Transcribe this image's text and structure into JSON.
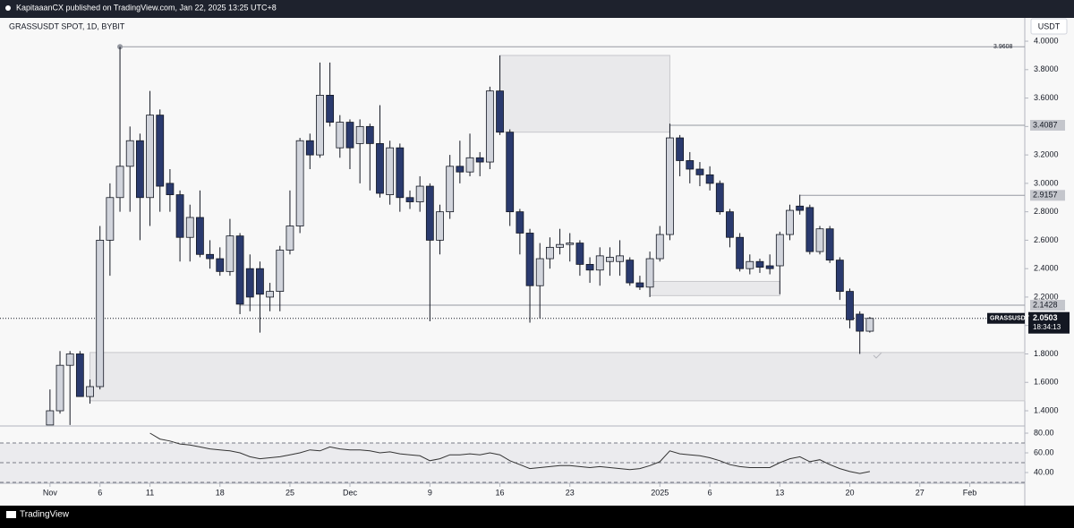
{
  "header": {
    "publisher": "KapitaaanCX published on TradingView.com, Jan 22, 2025 13:25 UTC+8",
    "brand": "TradingView"
  },
  "chart_data": {
    "type": "candlestick",
    "title": "GRASSUSDT SPOT, 1D, BYBIT",
    "currency": "USDT",
    "xlim": [
      -5,
      97.5
    ],
    "xticks": [
      {
        "value": 0,
        "label": "Nov"
      },
      {
        "value": 5,
        "label": "6"
      },
      {
        "value": 10,
        "label": "11"
      },
      {
        "value": 17,
        "label": "18"
      },
      {
        "value": 24,
        "label": "25"
      },
      {
        "value": 30,
        "label": "Dec"
      },
      {
        "value": 38,
        "label": "9"
      },
      {
        "value": 45,
        "label": "16"
      },
      {
        "value": 52,
        "label": "23"
      },
      {
        "value": 61,
        "label": "2025"
      },
      {
        "value": 66,
        "label": "6"
      },
      {
        "value": 73,
        "label": "13"
      },
      {
        "value": 80,
        "label": "20"
      },
      {
        "value": 87,
        "label": "27"
      },
      {
        "value": 92,
        "label": "Feb"
      }
    ],
    "ylim": [
      1.293,
      4.164
    ],
    "yticks": [
      {
        "value": 1.4,
        "label": "1.4000"
      },
      {
        "value": 1.6,
        "label": "1.6000"
      },
      {
        "value": 1.8,
        "label": "1.8000"
      },
      {
        "value": 2.0,
        "label": "2.0000"
      },
      {
        "value": 2.2,
        "label": "2.2000"
      },
      {
        "value": 2.4,
        "label": "2.4000"
      },
      {
        "value": 2.6,
        "label": "2.6000"
      },
      {
        "value": 2.8,
        "label": "2.8000"
      },
      {
        "value": 3.0,
        "label": "3.0000"
      },
      {
        "value": 3.2,
        "label": "3.2000"
      },
      {
        "value": 3.4,
        "label": "3.4000"
      },
      {
        "value": 3.6,
        "label": "3.6000"
      },
      {
        "value": 3.8,
        "label": "3.8000"
      },
      {
        "value": 4.0,
        "label": "4.0000"
      }
    ],
    "up_color": "#d1d4dc",
    "down_color": "#2a3a6e",
    "wick_color": "#131722",
    "open": [
      1.3,
      1.4,
      1.72,
      1.8,
      1.5,
      1.57,
      2.6,
      2.9,
      3.12,
      3.3,
      2.9,
      3.48,
      3.0,
      2.92,
      2.62,
      2.76,
      2.5,
      2.47,
      2.38,
      2.63,
      2.4,
      2.4,
      2.2,
      2.24,
      2.53,
      2.7,
      3.3,
      3.2,
      3.62,
      3.25,
      3.43,
      3.28,
      3.4,
      3.28,
      2.92,
      3.25,
      2.9,
      2.87,
      2.98,
      2.6,
      2.8,
      3.12,
      3.08,
      3.18,
      3.15,
      3.65,
      3.36,
      2.8,
      2.65,
      2.28,
      2.47,
      2.55,
      2.57,
      2.58,
      2.43,
      2.39,
      2.45,
      2.45,
      2.46,
      2.3,
      2.27,
      2.47,
      2.64,
      3.32,
      3.16,
      3.1,
      3.06,
      3.0,
      2.8,
      2.62,
      2.4,
      2.45,
      2.42,
      2.42,
      2.64,
      2.84,
      2.83,
      2.52,
      2.68,
      2.46,
      2.24,
      2.08,
      1.96
    ],
    "high": [
      1.55,
      1.82,
      1.82,
      1.82,
      1.62,
      2.7,
      3.0,
      3.96,
      3.4,
      3.35,
      3.65,
      3.52,
      3.1,
      2.95,
      2.85,
      2.95,
      2.6,
      2.55,
      2.75,
      2.65,
      2.5,
      2.45,
      2.3,
      2.56,
      2.95,
      3.32,
      3.35,
      3.85,
      3.85,
      3.48,
      3.45,
      3.45,
      3.42,
      3.55,
      3.3,
      3.28,
      2.95,
      3.05,
      3.0,
      2.85,
      3.2,
      3.3,
      3.35,
      3.22,
      3.68,
      3.9,
      3.38,
      2.82,
      2.68,
      2.58,
      2.62,
      2.68,
      2.65,
      2.6,
      2.48,
      2.55,
      2.55,
      2.6,
      2.48,
      2.35,
      2.52,
      2.7,
      3.42,
      3.34,
      3.22,
      3.15,
      3.12,
      3.02,
      2.82,
      2.65,
      2.5,
      2.47,
      2.5,
      2.66,
      2.85,
      2.92,
      2.85,
      2.7,
      2.7,
      2.48,
      2.26,
      2.1,
      2.06
    ],
    "low": [
      1.3,
      1.38,
      1.3,
      1.5,
      1.45,
      1.55,
      2.35,
      2.8,
      2.8,
      2.6,
      2.7,
      2.8,
      2.8,
      2.45,
      2.45,
      2.48,
      2.4,
      2.35,
      2.35,
      2.08,
      2.1,
      1.95,
      2.1,
      2.1,
      2.5,
      2.65,
      3.1,
      3.18,
      3.4,
      3.18,
      3.1,
      3.0,
      2.95,
      2.9,
      2.85,
      2.8,
      2.82,
      2.8,
      2.03,
      2.5,
      2.75,
      3.0,
      3.05,
      3.05,
      3.1,
      3.34,
      2.7,
      2.5,
      2.02,
      2.05,
      2.4,
      2.5,
      2.45,
      2.35,
      2.3,
      2.28,
      2.35,
      2.35,
      2.28,
      2.25,
      2.2,
      2.45,
      2.6,
      3.05,
      3.0,
      2.98,
      2.95,
      2.78,
      2.55,
      2.38,
      2.36,
      2.37,
      2.36,
      2.22,
      2.6,
      2.78,
      2.5,
      2.5,
      2.44,
      2.18,
      1.98,
      1.8,
      1.95
    ],
    "close": [
      1.4,
      1.72,
      1.8,
      1.5,
      1.57,
      2.6,
      2.9,
      3.12,
      3.3,
      2.9,
      3.48,
      2.98,
      2.92,
      2.62,
      2.76,
      2.5,
      2.47,
      2.38,
      2.63,
      2.15,
      2.2,
      2.22,
      2.24,
      2.53,
      2.7,
      3.3,
      3.2,
      3.62,
      3.43,
      3.43,
      3.25,
      3.4,
      3.28,
      2.93,
      3.25,
      2.9,
      2.87,
      2.98,
      2.6,
      2.8,
      3.12,
      3.08,
      3.18,
      3.15,
      3.65,
      3.36,
      2.8,
      2.65,
      2.28,
      2.47,
      2.55,
      2.57,
      2.58,
      2.43,
      2.39,
      2.49,
      2.48,
      2.49,
      2.3,
      2.27,
      2.47,
      2.64,
      3.32,
      3.16,
      3.1,
      3.06,
      3.0,
      2.8,
      2.62,
      2.4,
      2.45,
      2.41,
      2.4,
      2.64,
      2.81,
      2.81,
      2.52,
      2.68,
      2.46,
      2.24,
      2.04,
      1.96,
      2.05
    ],
    "price_lines": [
      {
        "value": 3.9608,
        "label": "3.9608",
        "from": 7
      },
      {
        "value": 3.4087,
        "label": "3.4087",
        "from": 62
      },
      {
        "value": 2.9157,
        "label": "2.9157",
        "from": 75
      },
      {
        "value": 2.1428,
        "label": "2.1428",
        "from": 19
      }
    ],
    "zones": [
      {
        "top": 3.9,
        "bottom": 3.36,
        "from": 45,
        "to": 62
      },
      {
        "top": 1.81,
        "bottom": 1.47,
        "from": 4,
        "to": 97.5
      },
      {
        "top": 2.31,
        "bottom": 2.21,
        "from": 60,
        "to": 73
      }
    ],
    "last_price": {
      "symbol": "GRASSUSDT",
      "value": 2.0503,
      "label": "2.0503",
      "countdown": "18:34:13"
    },
    "rsi": {
      "ylim": [
        29.1,
        87.3
      ],
      "yticks": [
        {
          "value": 40,
          "label": "40.00"
        },
        {
          "value": 60,
          "label": "60.00"
        },
        {
          "value": 80,
          "label": "80.00"
        }
      ],
      "levels": [
        30,
        50,
        70
      ],
      "color": "#333333",
      "values": [
        null,
        null,
        null,
        null,
        null,
        null,
        null,
        null,
        null,
        null,
        80,
        74,
        72,
        69,
        68,
        66,
        64,
        63,
        62,
        60,
        56,
        54,
        55,
        56,
        58,
        60,
        63,
        62,
        66,
        64,
        63,
        63,
        62,
        60,
        61,
        59,
        58,
        57,
        52,
        54,
        58,
        58,
        59,
        58,
        60,
        58,
        52,
        48,
        44,
        45,
        46,
        47,
        47,
        46,
        45,
        46,
        45,
        44,
        43,
        44,
        47,
        51,
        62,
        59,
        58,
        57,
        55,
        52,
        48,
        46,
        45,
        45,
        45,
        50,
        54,
        56,
        51,
        53,
        48,
        44,
        41,
        39,
        41
      ]
    }
  }
}
